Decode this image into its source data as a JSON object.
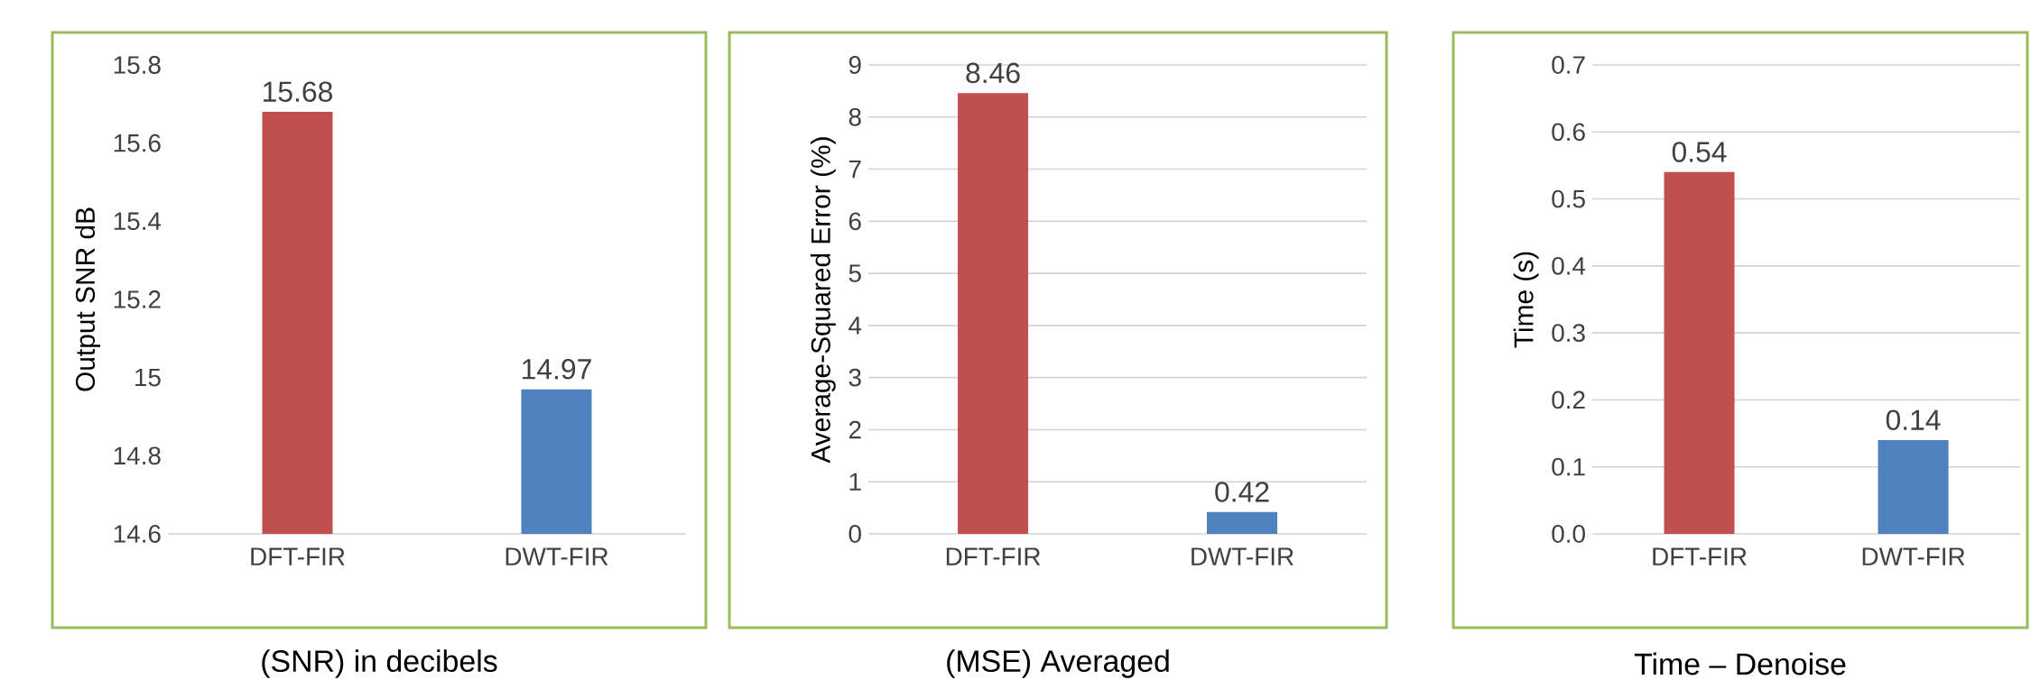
{
  "chart_data": [
    {
      "type": "bar",
      "categories": [
        "DFT-FIR",
        "DWT-FIR"
      ],
      "values": [
        15.68,
        14.97
      ],
      "colors": [
        "#c0504d",
        "#4f81bd"
      ],
      "ylabel": "Output SNR dB",
      "ylim": [
        14.6,
        15.8
      ],
      "yticks": [
        14.6,
        14.8,
        15,
        15.2,
        15.4,
        15.6,
        15.8
      ],
      "data_labels": true,
      "annotations": [
        "(SNR) in decibels"
      ]
    },
    {
      "type": "bar",
      "categories": [
        "DFT-FIR",
        "DWT-FIR"
      ],
      "values": [
        8.46,
        0.42
      ],
      "colors": [
        "#c0504d",
        "#4f81bd"
      ],
      "ylabel": "Average-Squared Error (%)",
      "ylim": [
        0,
        9
      ],
      "yticks": [
        0,
        1,
        2,
        3,
        4,
        5,
        6,
        7,
        8,
        9
      ],
      "grid": "y",
      "data_labels": true,
      "annotations": [
        "(MSE) Averaged"
      ]
    },
    {
      "type": "bar",
      "categories": [
        "DFT-FIR",
        "DWT-FIR"
      ],
      "values": [
        0.54,
        0.14
      ],
      "colors": [
        "#c0504d",
        "#4f81bd"
      ],
      "ylabel": "Time (s)",
      "ylim": [
        0,
        0.7
      ],
      "yticks": [
        {
          "value": 0,
          "label": "0.0"
        },
        {
          "value": 0.1,
          "label": "0.1"
        },
        {
          "value": 0.2,
          "label": "0.2"
        },
        {
          "value": 0.3,
          "label": "0.3"
        },
        {
          "value": 0.4,
          "label": "0.4"
        },
        {
          "value": 0.5,
          "label": "0.5"
        },
        {
          "value": 0.6,
          "label": "0.6"
        },
        {
          "value": 0.7,
          "label": "0.7"
        }
      ],
      "grid": "y",
      "data_labels": true,
      "annotations": [
        "Time – Denoise"
      ]
    }
  ]
}
